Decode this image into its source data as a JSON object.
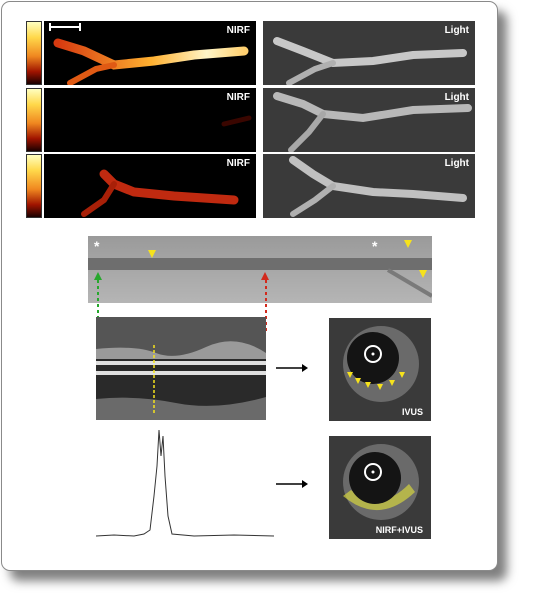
{
  "panels": {
    "nirf_label": "NIRF",
    "light_label": "Light"
  },
  "angio": {
    "asterisk": "*"
  },
  "ivus": {
    "top_label": "IVUS",
    "bottom_label": "NIRF+IVUS"
  },
  "colors": {
    "yellow_marker": "#f6e21c",
    "green_marker": "#27a82d",
    "red_marker": "#d22a1d"
  }
}
